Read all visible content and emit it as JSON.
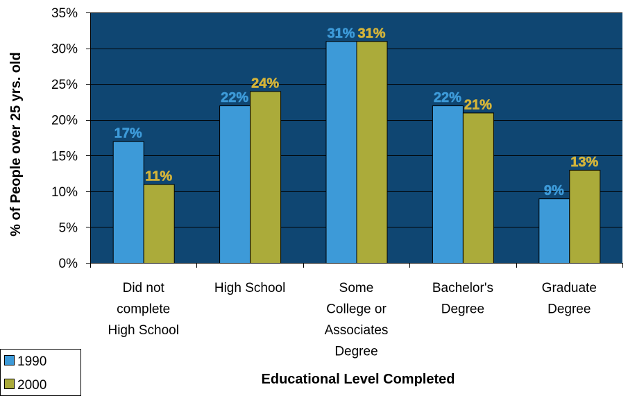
{
  "chart_data": {
    "type": "bar",
    "title": "",
    "xlabel": "Educational Level Completed",
    "ylabel": "% of People over 25 yrs. old",
    "ylim": [
      0,
      35
    ],
    "ytick_values": [
      0,
      5,
      10,
      15,
      20,
      25,
      30,
      35
    ],
    "ytick_labels": [
      "0%",
      "5%",
      "10%",
      "15%",
      "20%",
      "25%",
      "30%",
      "35%"
    ],
    "categories": [
      [
        "Did not",
        "complete",
        "High School"
      ],
      [
        "High School"
      ],
      [
        "Some",
        "College or",
        "Associates",
        "Degree"
      ],
      [
        "Bachelor's",
        "Degree"
      ],
      [
        "Graduate",
        "Degree"
      ]
    ],
    "series": [
      {
        "name": "1990",
        "values": [
          17,
          22,
          31,
          22,
          9
        ],
        "labels": [
          "17%",
          "22%",
          "31%",
          "22%",
          "9%"
        ],
        "color": "#3d9ad8",
        "label_color": "#3d9ad8"
      },
      {
        "name": "2000",
        "values": [
          11,
          24,
          31,
          21,
          13
        ],
        "labels": [
          "11%",
          "24%",
          "31%",
          "21%",
          "13%"
        ],
        "color": "#abab3a",
        "label_color": "#d4b43a"
      }
    ],
    "plot_background": "#0f4672",
    "grid": true,
    "grid_color": "#000000",
    "legend_position": "bottom-left"
  }
}
